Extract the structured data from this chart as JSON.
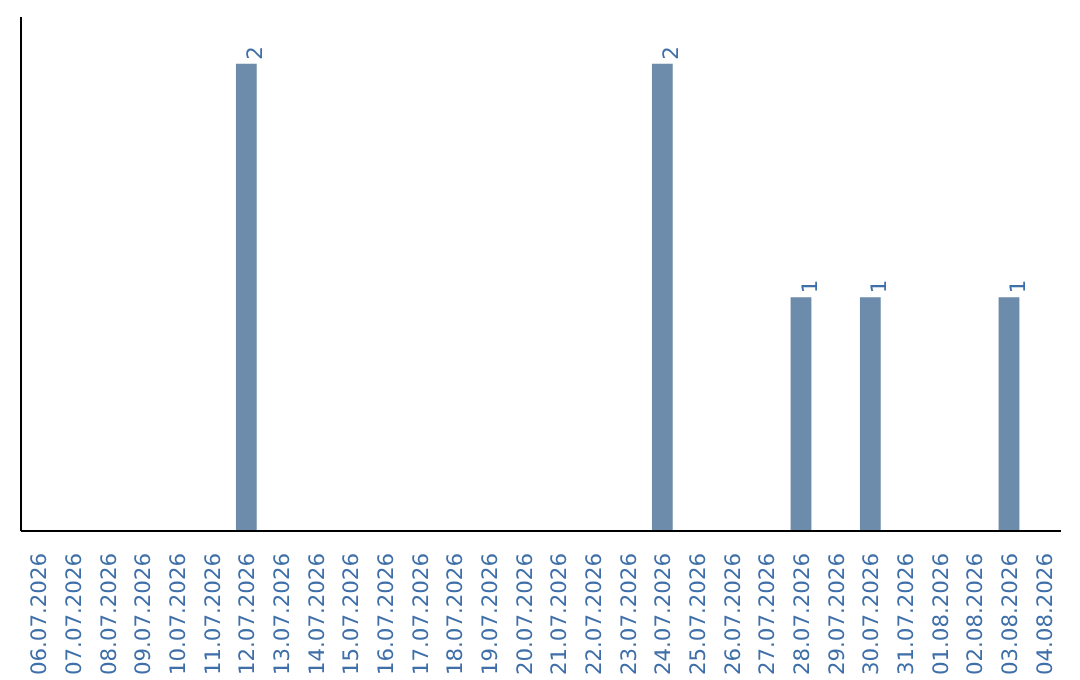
{
  "chart_data": {
    "type": "bar",
    "categories": [
      "06.07.2026",
      "07.07.2026",
      "08.07.2026",
      "09.07.2026",
      "10.07.2026",
      "11.07.2026",
      "12.07.2026",
      "13.07.2026",
      "14.07.2026",
      "15.07.2026",
      "16.07.2026",
      "17.07.2026",
      "18.07.2026",
      "19.07.2026",
      "20.07.2026",
      "21.07.2026",
      "22.07.2026",
      "23.07.2026",
      "24.07.2026",
      "25.07.2026",
      "26.07.2026",
      "27.07.2026",
      "28.07.2026",
      "29.07.2026",
      "30.07.2026",
      "31.07.2026",
      "01.08.2026",
      "02.08.2026",
      "03.08.2026",
      "04.08.2026"
    ],
    "values": [
      0,
      0,
      0,
      0,
      0,
      0,
      2,
      0,
      0,
      0,
      0,
      0,
      0,
      0,
      0,
      0,
      0,
      0,
      2,
      0,
      0,
      0,
      1,
      0,
      1,
      0,
      0,
      0,
      1,
      0
    ],
    "color": "#6d8cab",
    "value_labels": [
      null,
      null,
      null,
      null,
      null,
      null,
      "2",
      null,
      null,
      null,
      null,
      null,
      null,
      null,
      null,
      null,
      null,
      null,
      "2",
      null,
      null,
      null,
      "1",
      null,
      "1",
      null,
      null,
      null,
      "1",
      null
    ],
    "grid": false,
    "tick_labels": "x"
  }
}
